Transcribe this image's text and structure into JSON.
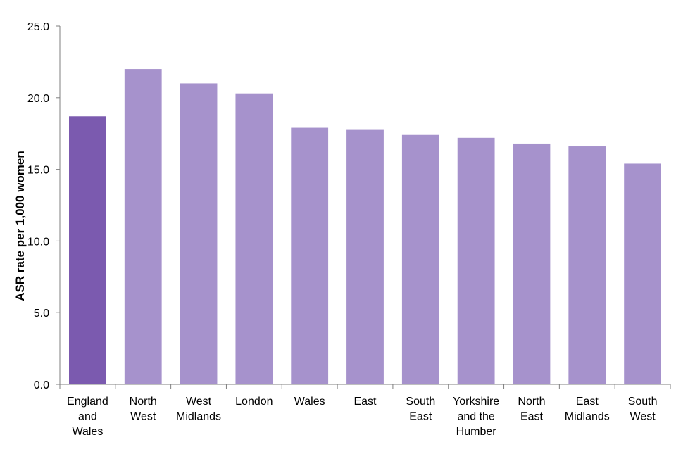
{
  "chart_data": {
    "type": "bar",
    "title": "",
    "xlabel": "",
    "ylabel": "ASR rate per 1,000 women",
    "categories": [
      [
        "England",
        "and",
        "Wales"
      ],
      [
        "North",
        "West"
      ],
      [
        "West",
        "Midlands"
      ],
      [
        "London"
      ],
      [
        "Wales"
      ],
      [
        "East"
      ],
      [
        "South",
        "East"
      ],
      [
        "Yorkshire",
        "and the",
        "Humber"
      ],
      [
        "North",
        "East"
      ],
      [
        "East",
        "Midlands"
      ],
      [
        "South",
        "West"
      ]
    ],
    "values": [
      18.7,
      22.0,
      21.0,
      20.3,
      17.9,
      17.8,
      17.4,
      17.2,
      16.8,
      16.6,
      15.4
    ],
    "ylim": [
      0,
      25
    ],
    "yticks": [
      "0.0",
      "5.0",
      "10.0",
      "15.0",
      "20.0",
      "25.0"
    ],
    "grid": false,
    "colors": {
      "highlight": "#7b5aaf",
      "bar": "#a692cc",
      "axis": "#7f7f7f"
    }
  }
}
